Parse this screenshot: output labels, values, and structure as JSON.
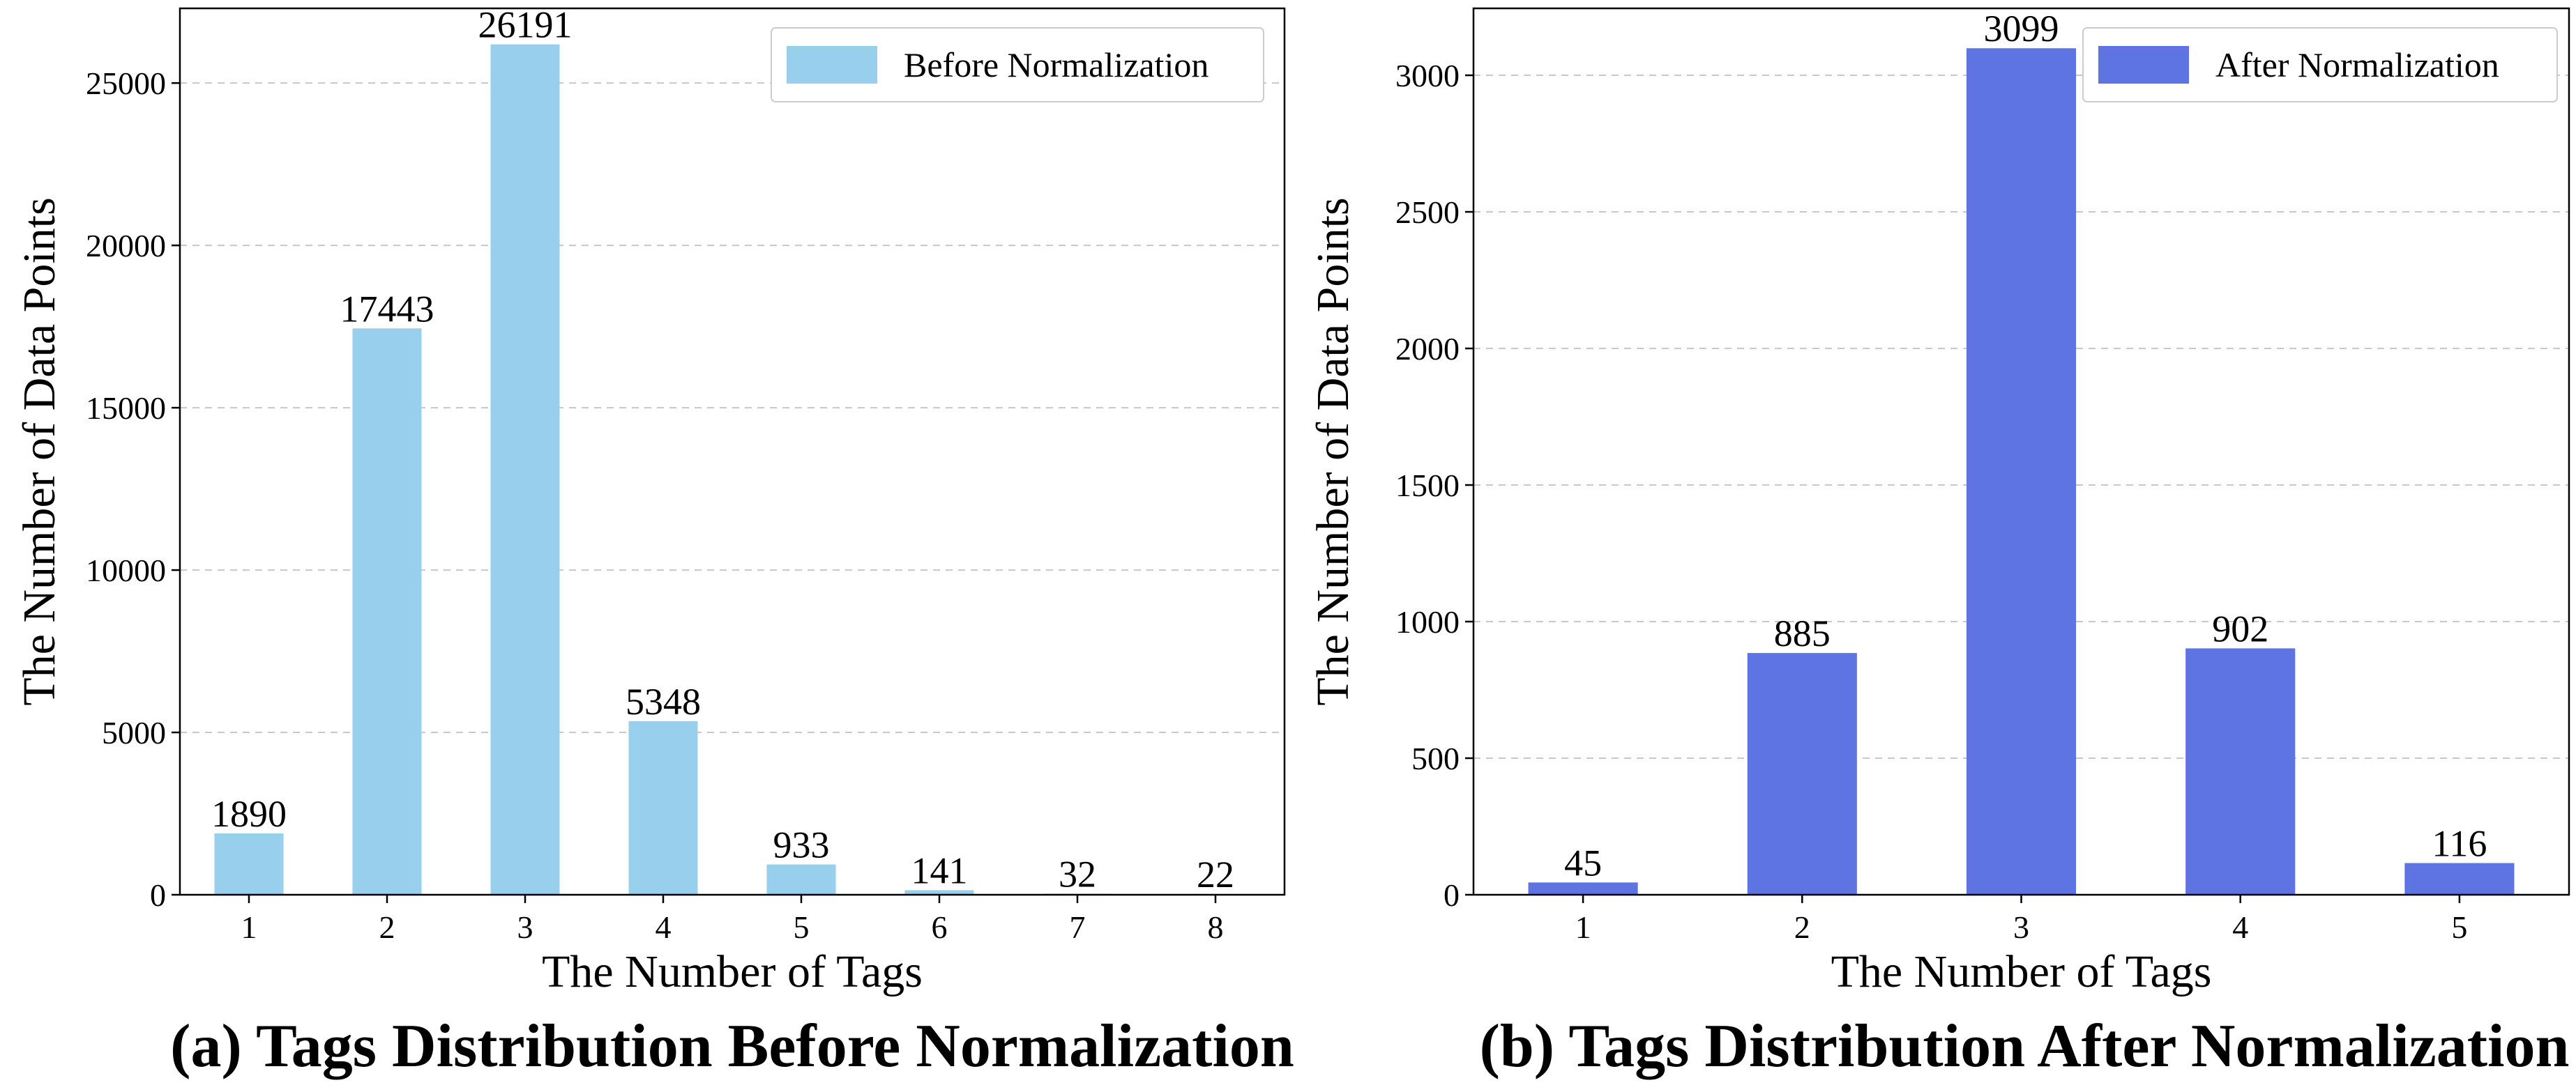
{
  "chart_data": [
    {
      "type": "bar",
      "caption": "(a) Tags Distribution Before Normalization",
      "xlabel": "The Number of Tags",
      "ylabel": "The Number of Data Points",
      "categories": [
        "1",
        "2",
        "3",
        "4",
        "5",
        "6",
        "7",
        "8"
      ],
      "series": [
        {
          "name": "Before Normalization",
          "color": "#97cfec",
          "values": [
            1890,
            17443,
            26191,
            5348,
            933,
            141,
            32,
            22
          ]
        }
      ],
      "ylim": [
        0,
        27300
      ],
      "yticks": [
        0,
        5000,
        10000,
        15000,
        20000,
        25000
      ],
      "grid": "y-dashed",
      "legend": "top-right"
    },
    {
      "type": "bar",
      "caption": "(b) Tags Distribution After Normalization",
      "xlabel": "The Number of Tags",
      "ylabel": "The Number of Data Points",
      "categories": [
        "1",
        "2",
        "3",
        "4",
        "5"
      ],
      "series": [
        {
          "name": "After Normalization",
          "color": "#5f74e3",
          "values": [
            45,
            885,
            3099,
            902,
            116
          ]
        }
      ],
      "ylim": [
        0,
        3245
      ],
      "yticks": [
        0,
        500,
        1000,
        1500,
        2000,
        2500,
        3000
      ],
      "grid": "y-dashed",
      "legend": "top-right"
    }
  ]
}
